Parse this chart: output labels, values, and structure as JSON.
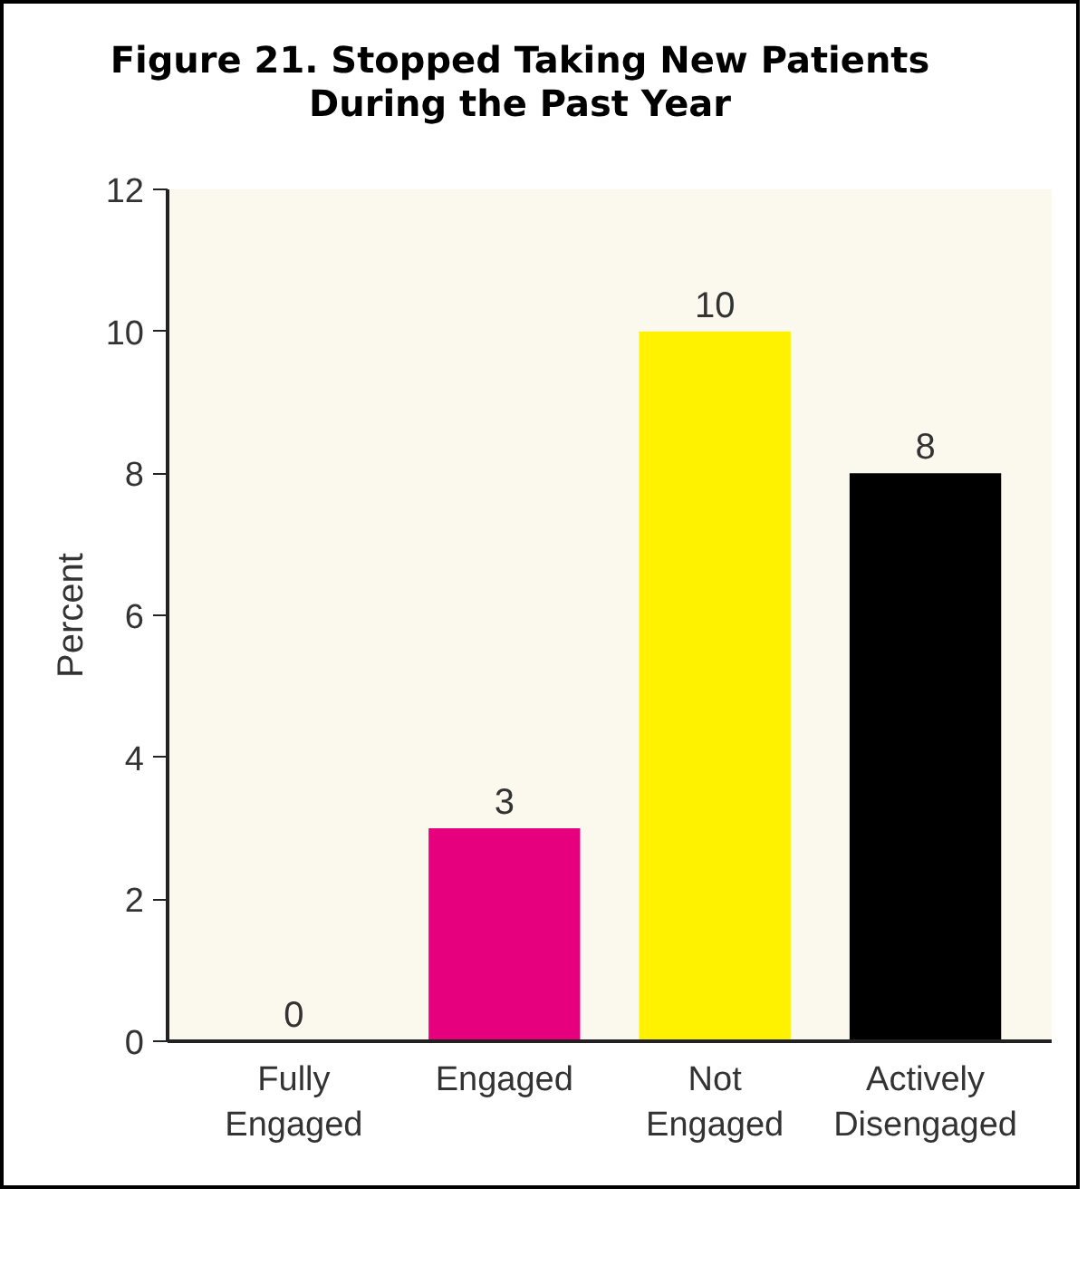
{
  "chart_data": {
    "type": "bar",
    "title": "Figure 21. Stopped Taking New Patients During the Past Year",
    "ylabel": "Percent",
    "categories": [
      "Fully Engaged",
      "Engaged",
      "Not Engaged",
      "Actively Disengaged"
    ],
    "values": [
      0,
      3,
      10,
      8
    ],
    "colors": [
      null,
      "#e6007e",
      "#fff200",
      "#000000"
    ],
    "ylim": [
      0,
      12
    ],
    "yticks": [
      0,
      2,
      4,
      6,
      8,
      10,
      12
    ],
    "data_labels": true,
    "grid": false
  }
}
